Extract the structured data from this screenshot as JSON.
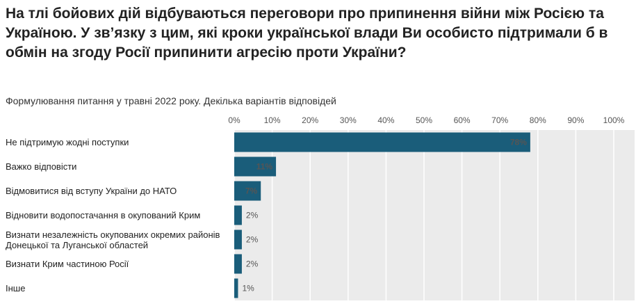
{
  "chart_data": {
    "type": "hbar",
    "title": "На тлі бойових дій відбуваються переговори про припинення війни між Росією та Україною. У зв’язку з цим, які кроки української влади Ви особисто підтримали б в обмін на згоду Росії припинити агресію проти України?",
    "subtitle": "Формулювання питання у травні 2022 року. Декілька варіантів відповідей",
    "categories": [
      "Не підтримую жодні поступки",
      "Важко відповісти",
      "Відмовитися від вступу України до НАТО",
      "Відновити водопостачання в окупований Крим",
      "Визнати незалежність окупованих окремих районів Донецької та Луганської областей",
      "Визнати Крим частиною Росії",
      "Інше"
    ],
    "values": [
      78,
      11,
      7,
      2,
      2,
      2,
      1
    ],
    "value_labels": [
      "78%",
      "11%",
      "7%",
      "2%",
      "2%",
      "2%",
      "1%"
    ],
    "color": "#1a5d7a",
    "xlim": [
      0,
      100
    ],
    "xticks": [
      {
        "value": 0,
        "label": "0%"
      },
      {
        "value": 10,
        "label": "10%"
      },
      {
        "value": 20,
        "label": "20%"
      },
      {
        "value": 30,
        "label": "30%"
      },
      {
        "value": 40,
        "label": "40%"
      },
      {
        "value": 50,
        "label": "50%"
      },
      {
        "value": 60,
        "label": "60%"
      },
      {
        "value": 70,
        "label": "70%"
      },
      {
        "value": 80,
        "label": "80%"
      },
      {
        "value": 90,
        "label": "90%"
      },
      {
        "value": 100,
        "label": "100%"
      }
    ],
    "grid": true
  }
}
